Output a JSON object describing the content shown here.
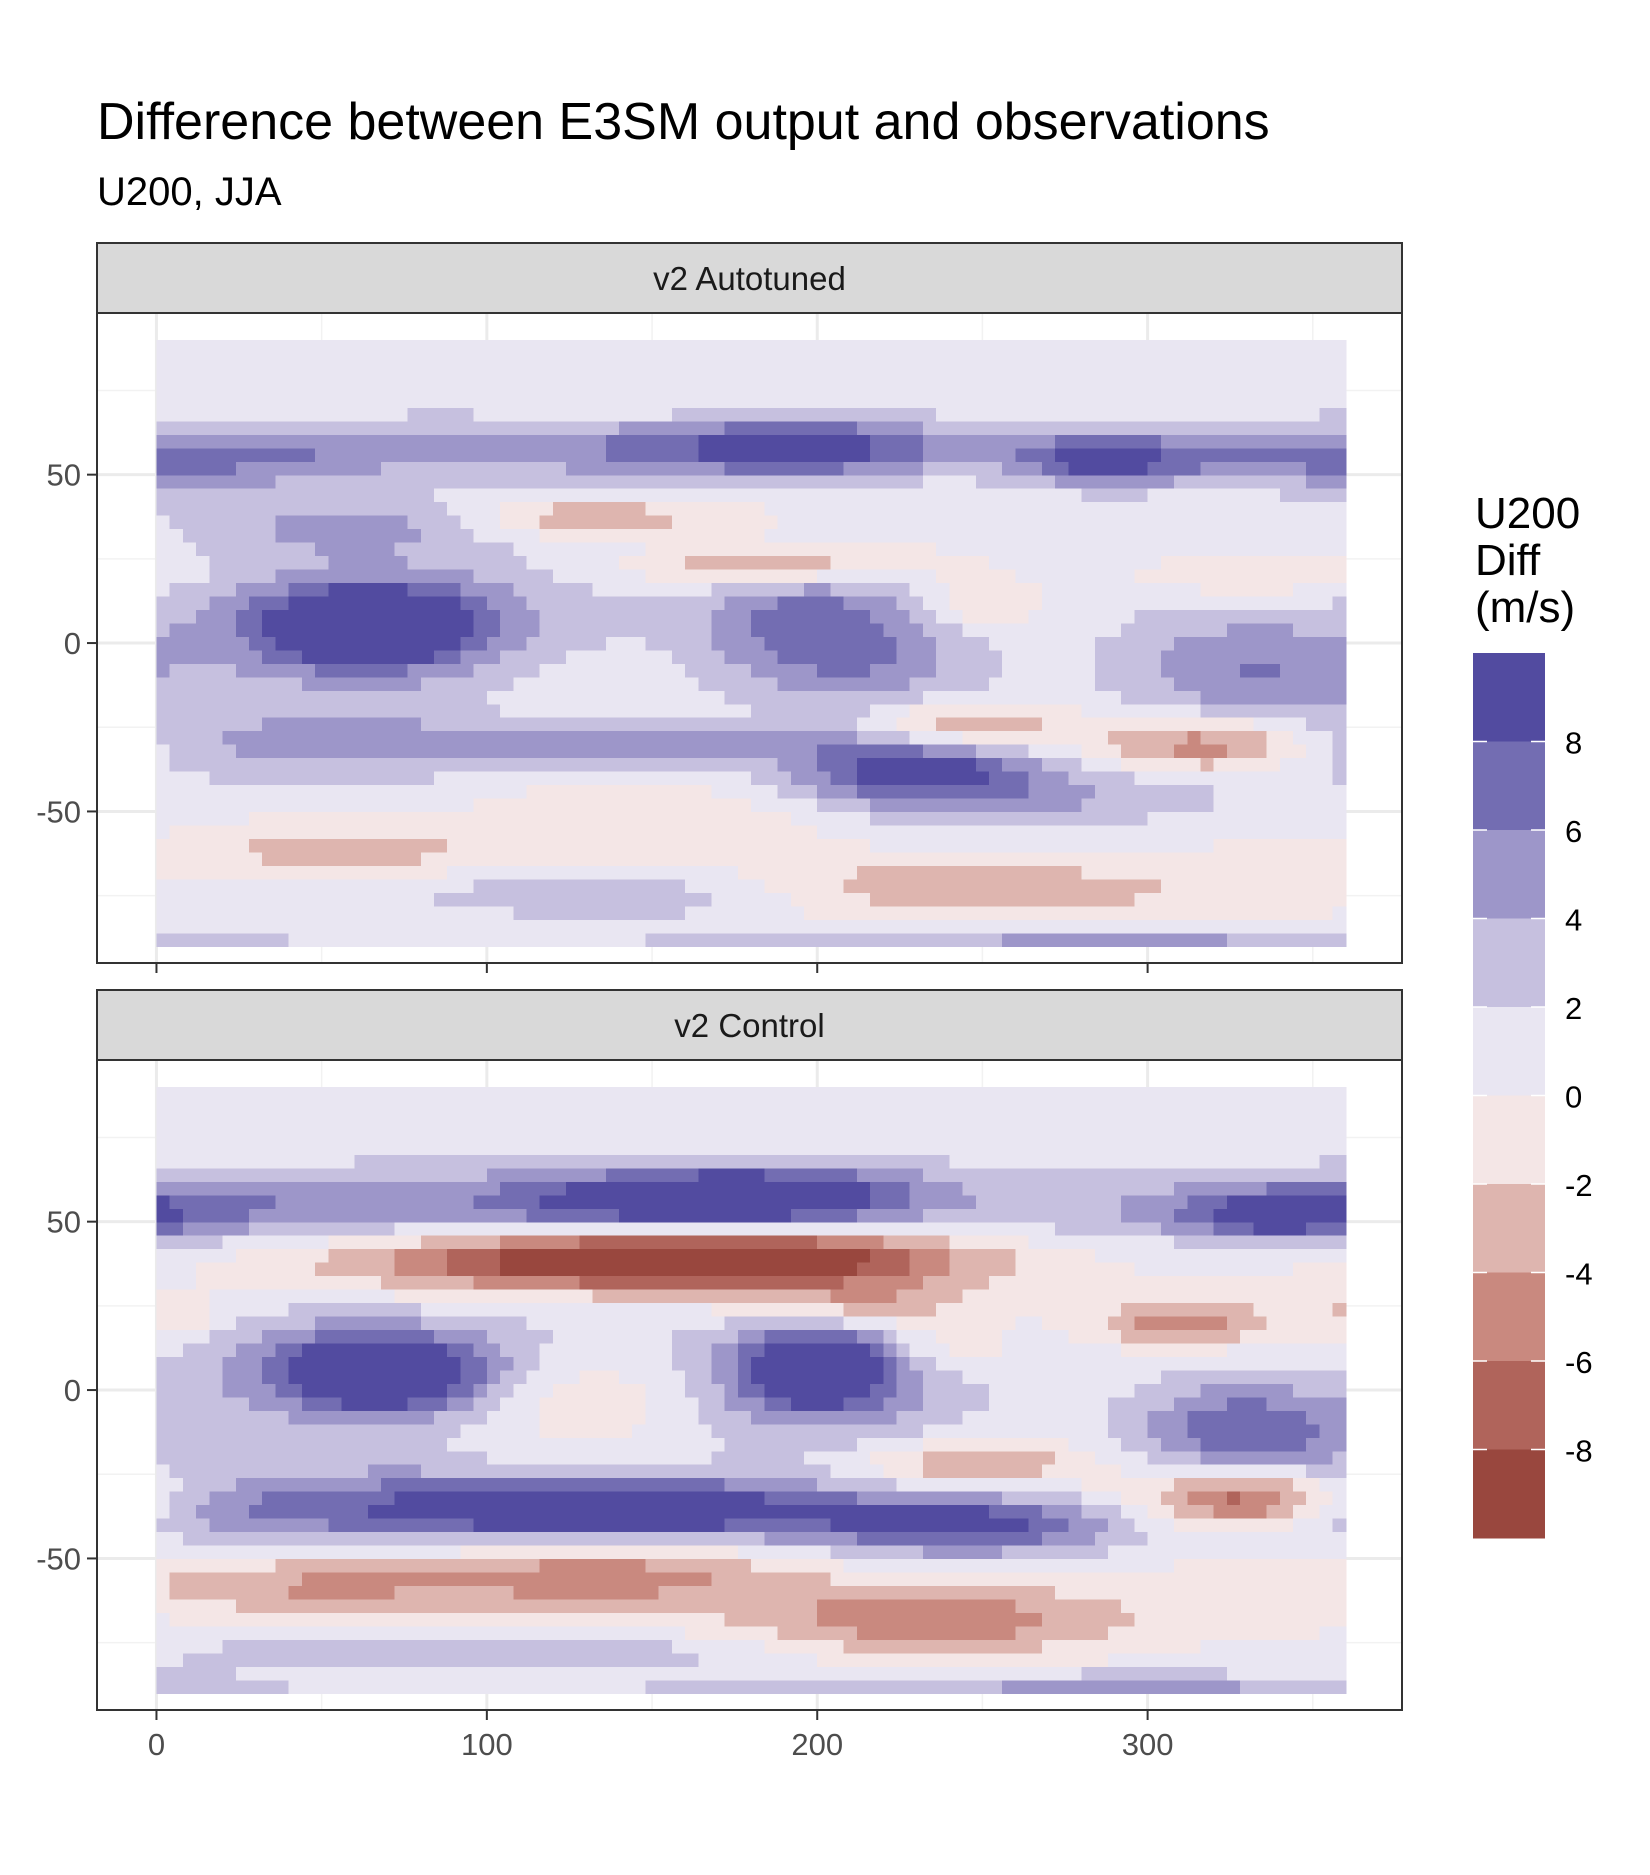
{
  "title": "Difference between E3SM output and observations",
  "subtitle": "U200, JJA",
  "legend": {
    "title_lines": [
      "U200",
      "Diff",
      "(m/s)"
    ],
    "breaks": [
      8,
      6,
      4,
      2,
      0,
      -2,
      -4,
      -6,
      -8
    ],
    "bins": [
      {
        "range": [
          8,
          10
        ],
        "color": "#524ba0"
      },
      {
        "range": [
          6,
          8
        ],
        "color": "#736db2"
      },
      {
        "range": [
          4,
          6
        ],
        "color": "#9d96c9"
      },
      {
        "range": [
          2,
          4
        ],
        "color": "#c6c0df"
      },
      {
        "range": [
          0,
          2
        ],
        "color": "#e9e6f2"
      },
      {
        "range": [
          -2,
          0
        ],
        "color": "#f4e6e6"
      },
      {
        "range": [
          -4,
          -2
        ],
        "color": "#deb5af"
      },
      {
        "range": [
          -6,
          -4
        ],
        "color": "#c9897f"
      },
      {
        "range": [
          -8,
          -6
        ],
        "color": "#b0645b"
      },
      {
        "range": [
          -10,
          -8
        ],
        "color": "#99473e"
      }
    ]
  },
  "chart_data": {
    "type": "heatmap",
    "title": "Difference between E3SM output and observations",
    "subtitle": "U200, JJA",
    "xlabel": "",
    "ylabel": "",
    "xlim": [
      -18,
      377
    ],
    "ylim": [
      -95,
      98
    ],
    "x_ticks": [
      0,
      100,
      200,
      300
    ],
    "y_ticks": [
      -50,
      0,
      50
    ],
    "grid": true,
    "legend_position": "right",
    "data_extent": {
      "lon": [
        0,
        360
      ],
      "lat": [
        -90,
        90
      ]
    },
    "panels": [
      {
        "name": "v2 Autotuned",
        "features": [
          {
            "lon": 65,
            "lat": 5,
            "value": 9,
            "slon": 22,
            "slat": 8
          },
          {
            "lon": 70,
            "lat": 7,
            "value": 6,
            "slon": 40,
            "slat": 14
          },
          {
            "lon": 200,
            "lat": 8,
            "value": 6,
            "slon": 24,
            "slat": 10
          },
          {
            "lon": 215,
            "lat": -8,
            "value": 4,
            "slon": 30,
            "slat": 10
          },
          {
            "lon": 195,
            "lat": 58,
            "value": 7,
            "slon": 28,
            "slat": 6
          },
          {
            "lon": 140,
            "lat": 58,
            "value": 5,
            "slon": 70,
            "slat": 6
          },
          {
            "lon": 285,
            "lat": 55,
            "value": 7,
            "slon": 18,
            "slat": 5
          },
          {
            "lon": 330,
            "lat": 55,
            "value": 5,
            "slon": 35,
            "slat": 7
          },
          {
            "lon": 30,
            "lat": 55,
            "value": 4,
            "slon": 30,
            "slat": 8
          },
          {
            "lon": 60,
            "lat": 35,
            "value": 4,
            "slon": 30,
            "slat": 6
          },
          {
            "lon": 330,
            "lat": -8,
            "value": 5,
            "slon": 30,
            "slat": 12
          },
          {
            "lon": 150,
            "lat": -30,
            "value": 6,
            "slon": 40,
            "slat": 4
          },
          {
            "lon": 230,
            "lat": -37,
            "value": 7,
            "slon": 25,
            "slat": 6
          },
          {
            "lon": 40,
            "lat": -30,
            "value": 4,
            "slon": 50,
            "slat": 8
          },
          {
            "lon": 250,
            "lat": -45,
            "value": 4,
            "slon": 60,
            "slat": 7
          },
          {
            "lon": 140,
            "lat": -75,
            "value": 3,
            "slon": 60,
            "slat": 5
          },
          {
            "lon": 280,
            "lat": -88,
            "value": 4,
            "slon": 80,
            "slat": 3
          },
          {
            "lon": 130,
            "lat": 37,
            "value": -5,
            "slon": 25,
            "slat": 4
          },
          {
            "lon": 185,
            "lat": 23,
            "value": -5,
            "slon": 30,
            "slat": 4
          },
          {
            "lon": 245,
            "lat": -24,
            "value": -5,
            "slon": 20,
            "slat": 5
          },
          {
            "lon": 320,
            "lat": -30,
            "value": -7,
            "slon": 25,
            "slat": 6
          },
          {
            "lon": 250,
            "lat": -73,
            "value": -5,
            "slon": 50,
            "slat": 6
          },
          {
            "lon": 150,
            "lat": -50,
            "value": -3,
            "slon": 40,
            "slat": 7
          },
          {
            "lon": 60,
            "lat": -62,
            "value": -3,
            "slon": 45,
            "slat": 5
          },
          {
            "lon": 250,
            "lat": 12,
            "value": -3,
            "slon": 10,
            "slat": 5
          },
          {
            "lon": 330,
            "lat": 20,
            "value": -3,
            "slon": 25,
            "slat": 4
          }
        ]
      },
      {
        "name": "v2 Control",
        "features": [
          {
            "lon": 68,
            "lat": 5,
            "value": 9,
            "slon": 20,
            "slat": 7
          },
          {
            "lon": 70,
            "lat": 7,
            "value": 6,
            "slon": 38,
            "slat": 13
          },
          {
            "lon": 200,
            "lat": 7,
            "value": 9,
            "slon": 15,
            "slat": 8
          },
          {
            "lon": 205,
            "lat": 4,
            "value": 5,
            "slon": 35,
            "slat": 14
          },
          {
            "lon": 180,
            "lat": 58,
            "value": 9,
            "slon": 35,
            "slat": 6
          },
          {
            "lon": 140,
            "lat": 55,
            "value": 6,
            "slon": 60,
            "slat": 8
          },
          {
            "lon": 340,
            "lat": 52,
            "value": 7,
            "slon": 20,
            "slat": 5
          },
          {
            "lon": 320,
            "lat": 55,
            "value": 4,
            "slon": 40,
            "slat": 8
          },
          {
            "lon": 30,
            "lat": 55,
            "value": 4,
            "slon": 30,
            "slat": 8
          },
          {
            "lon": 330,
            "lat": -12,
            "value": 7,
            "slon": 25,
            "slat": 10
          },
          {
            "lon": 140,
            "lat": -35,
            "value": 9,
            "slon": 30,
            "slat": 5
          },
          {
            "lon": 140,
            "lat": -35,
            "value": 6,
            "slon": 60,
            "slat": 8
          },
          {
            "lon": 245,
            "lat": -40,
            "value": 8,
            "slon": 35,
            "slat": 6
          },
          {
            "lon": 40,
            "lat": -35,
            "value": 5,
            "slon": 45,
            "slat": 8
          },
          {
            "lon": 100,
            "lat": -78,
            "value": 3,
            "slon": 70,
            "slat": 4
          },
          {
            "lon": 280,
            "lat": -88,
            "value": 4,
            "slon": 80,
            "slat": 3
          },
          {
            "lon": 160,
            "lat": 40,
            "value": -9,
            "slon": 50,
            "slat": 5
          },
          {
            "lon": 150,
            "lat": 37,
            "value": -7,
            "slon": 70,
            "slat": 7
          },
          {
            "lon": 215,
            "lat": 25,
            "value": -4,
            "slon": 25,
            "slat": 5
          },
          {
            "lon": 245,
            "lat": -22,
            "value": -5,
            "slon": 25,
            "slat": 5
          },
          {
            "lon": 330,
            "lat": -32,
            "value": -9,
            "slon": 22,
            "slat": 6
          },
          {
            "lon": 310,
            "lat": 20,
            "value": -6,
            "slon": 20,
            "slat": 5
          },
          {
            "lon": 240,
            "lat": -68,
            "value": -6,
            "slon": 45,
            "slat": 8
          },
          {
            "lon": 130,
            "lat": -55,
            "value": -6,
            "slon": 40,
            "slat": 7
          },
          {
            "lon": 40,
            "lat": -58,
            "value": -4,
            "slon": 40,
            "slat": 6
          },
          {
            "lon": 130,
            "lat": 0,
            "value": -3,
            "slon": 25,
            "slat": 10
          },
          {
            "lon": 5,
            "lat": 22,
            "value": -3,
            "slon": 12,
            "slat": 5
          },
          {
            "lon": 240,
            "lat": 12,
            "value": -3,
            "slon": 15,
            "slat": 5
          }
        ]
      }
    ]
  }
}
